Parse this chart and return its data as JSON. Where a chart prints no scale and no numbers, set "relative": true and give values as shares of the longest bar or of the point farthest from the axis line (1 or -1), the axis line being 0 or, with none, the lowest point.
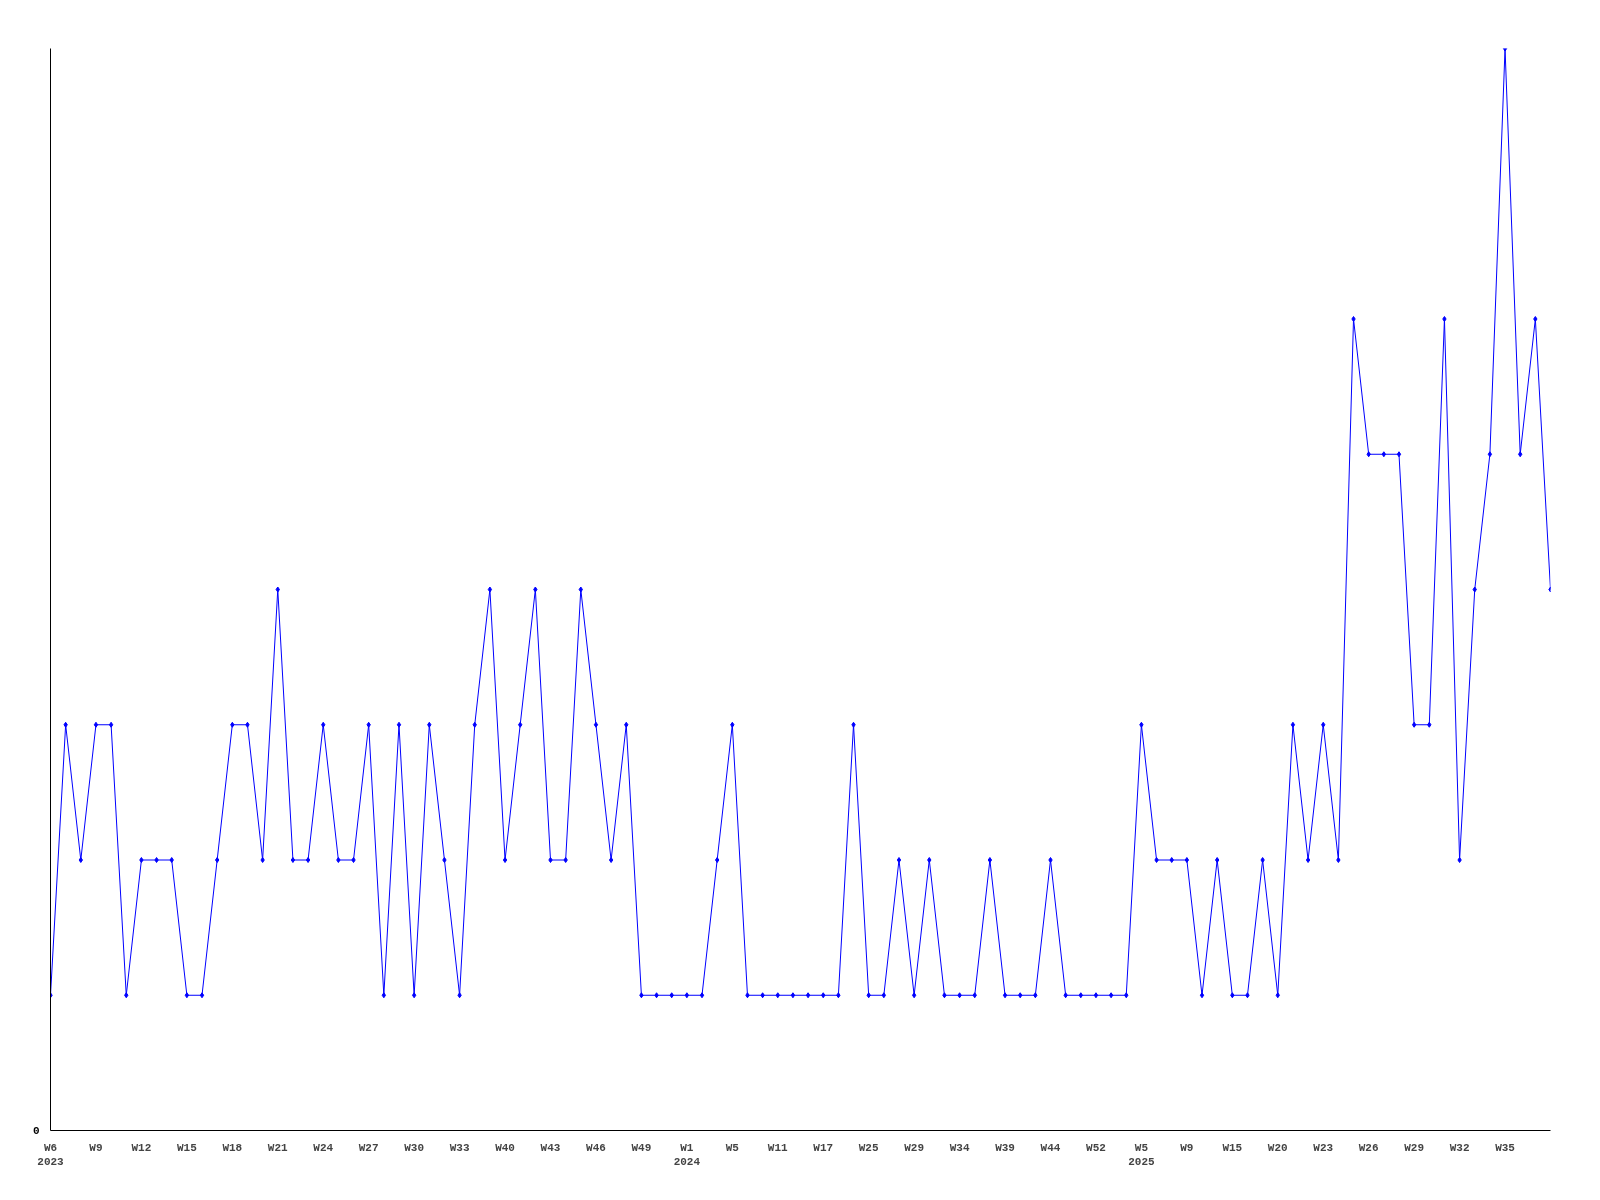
{
  "chart_data": {
    "type": "line",
    "relative": true,
    "color": "#0000ff",
    "marker": "diamond",
    "grid": false,
    "annotations": [
      "0"
    ],
    "categories": [
      "W6\n2023",
      null,
      null,
      "W9",
      null,
      null,
      "W12",
      null,
      null,
      "W15",
      null,
      null,
      "W18",
      null,
      null,
      "W21",
      null,
      null,
      "W24",
      null,
      null,
      "W27",
      null,
      null,
      "W30",
      null,
      null,
      "W33",
      null,
      null,
      "W40",
      null,
      null,
      "W43",
      null,
      null,
      "W46",
      null,
      null,
      "W49",
      null,
      null,
      "W1\n2024",
      null,
      null,
      "W5",
      null,
      null,
      "W11",
      null,
      null,
      "W17",
      null,
      null,
      "W25",
      null,
      null,
      "W29",
      null,
      null,
      "W34",
      null,
      null,
      "W39",
      null,
      null,
      "W44",
      null,
      null,
      "W52",
      null,
      null,
      "W5\n2025",
      null,
      null,
      "W9",
      null,
      null,
      "W15",
      null,
      null,
      "W20",
      null,
      null,
      "W23",
      null,
      null,
      "W26",
      null,
      null,
      "W29",
      null,
      null,
      "W32",
      null,
      null,
      "W35",
      null,
      null,
      null
    ],
    "values": [
      0.125,
      0.375,
      0.25,
      0.375,
      0.375,
      0.125,
      0.25,
      0.25,
      0.25,
      0.125,
      0.125,
      0.25,
      0.375,
      0.375,
      0.25,
      0.5,
      0.25,
      0.25,
      0.375,
      0.25,
      0.25,
      0.375,
      0.125,
      0.375,
      0.125,
      0.375,
      0.25,
      0.125,
      0.375,
      0.5,
      0.25,
      0.375,
      0.5,
      0.25,
      0.25,
      0.5,
      0.375,
      0.25,
      0.375,
      0.125,
      0.125,
      0.125,
      0.125,
      0.125,
      0.25,
      0.375,
      0.125,
      0.125,
      0.125,
      0.125,
      0.125,
      0.125,
      0.125,
      0.375,
      0.125,
      0.125,
      0.25,
      0.125,
      0.25,
      0.125,
      0.125,
      0.125,
      0.25,
      0.125,
      0.125,
      0.125,
      0.25,
      0.125,
      0.125,
      0.125,
      0.125,
      0.125,
      0.375,
      0.25,
      0.25,
      0.25,
      0.125,
      0.25,
      0.125,
      0.125,
      0.25,
      0.125,
      0.375,
      0.25,
      0.375,
      0.25,
      0.75,
      0.625,
      0.625,
      0.625,
      0.375,
      0.375,
      0.75,
      0.25,
      0.5,
      0.625,
      1,
      0.625,
      0.75,
      0.5
    ]
  }
}
